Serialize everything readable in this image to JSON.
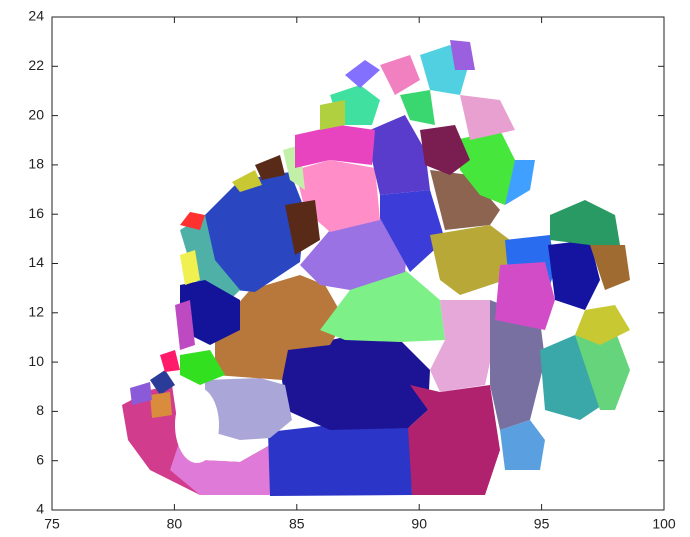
{
  "chart_data": {
    "type": "region",
    "xlim": [
      75,
      100
    ],
    "ylim": [
      4,
      24
    ],
    "xticks": [
      75,
      80,
      85,
      90,
      95,
      100
    ],
    "yticks": [
      4,
      6,
      8,
      10,
      12,
      14,
      16,
      18,
      20,
      22,
      24
    ]
  }
}
